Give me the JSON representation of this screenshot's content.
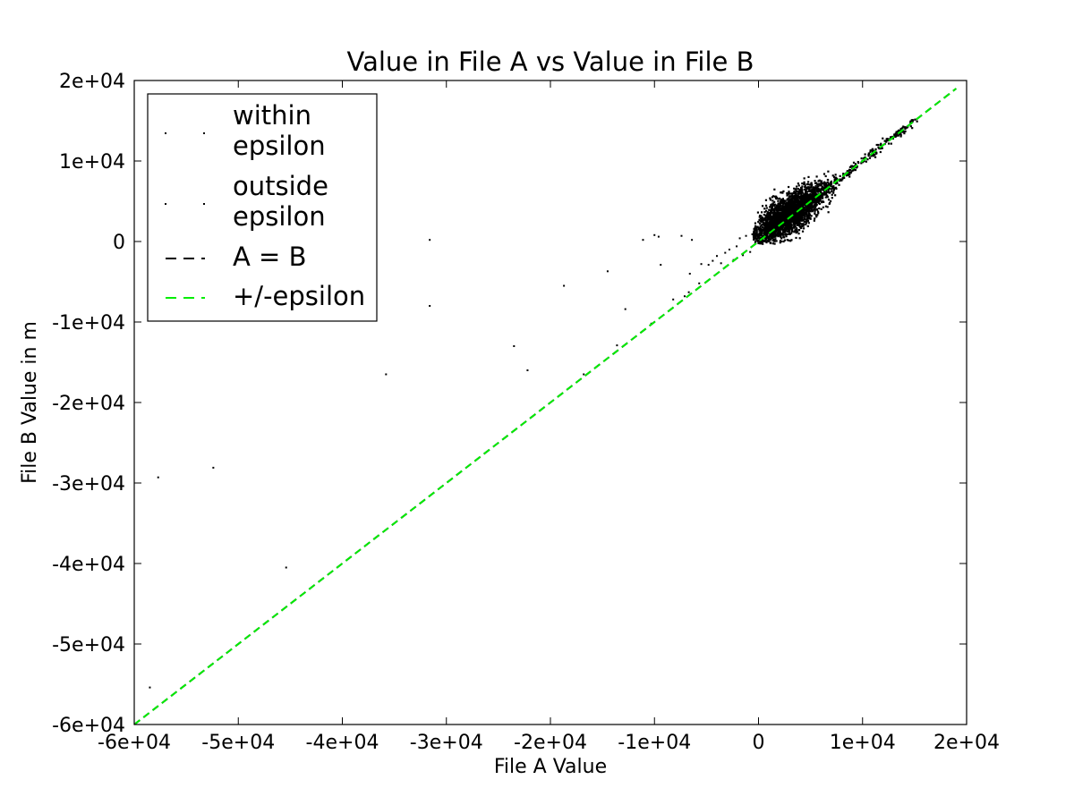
{
  "chart_data": {
    "type": "scatter",
    "title": "Value in File A vs Value in File B",
    "xlabel": "File A Value",
    "ylabel": "File B Value in m",
    "xlim": [
      -60000,
      20000
    ],
    "ylim": [
      -60000,
      20000
    ],
    "x_ticks": [
      -60000,
      -50000,
      -40000,
      -30000,
      -20000,
      -10000,
      0,
      10000,
      20000
    ],
    "x_tick_labels": [
      "-6e+04",
      "-5e+04",
      "-4e+04",
      "-3e+04",
      "-2e+04",
      "-1e+04",
      "0",
      "1e+04",
      "2e+04"
    ],
    "y_ticks": [
      20000,
      10000,
      0,
      -10000,
      -20000,
      -30000,
      -40000,
      -50000,
      -60000
    ],
    "y_tick_labels": [
      "2e+04",
      "1e+04",
      "0",
      "-1e+04",
      "-2e+04",
      "-3e+04",
      "-4e+04",
      "-5e+04",
      "-6e+04"
    ],
    "grid": false,
    "legend_position": "top-left",
    "legend": [
      {
        "label_lines": [
          "within",
          "epsilon"
        ],
        "marker": "point",
        "color": "#000000"
      },
      {
        "label_lines": [
          "outside",
          "epsilon"
        ],
        "marker": "point",
        "color": "#000000"
      },
      {
        "label_lines": [
          "A = B"
        ],
        "marker": "dashed-line",
        "color": "#000000"
      },
      {
        "label_lines": [
          "+/-epsilon"
        ],
        "marker": "dashed-line",
        "color": "#00ee00"
      }
    ],
    "colors": {
      "points": "#000000",
      "identity_line": "#000000",
      "epsilon_line": "#00ee00"
    },
    "lines": [
      {
        "name": "A = B",
        "x": [
          -60000,
          19000
        ],
        "y": [
          -60000,
          19000
        ]
      },
      {
        "name": "+/-epsilon",
        "x": [
          -60000,
          19000
        ],
        "y": [
          -60000,
          19000
        ]
      }
    ],
    "dense_cluster": {
      "description_of_shape": "elongated cloud along y = x",
      "center": [
        3000,
        3500
      ],
      "x_range": [
        -500,
        15000
      ],
      "y_range": [
        -300,
        15000
      ]
    },
    "outside_points": [
      {
        "x": -58500,
        "y": -55400
      },
      {
        "x": -57700,
        "y": -29300
      },
      {
        "x": -52400,
        "y": -28100
      },
      {
        "x": -45400,
        "y": -40500
      },
      {
        "x": -35800,
        "y": -16500
      },
      {
        "x": -31600,
        "y": 200
      },
      {
        "x": -31600,
        "y": -8000
      },
      {
        "x": -23500,
        "y": -13000
      },
      {
        "x": -22200,
        "y": -16000
      },
      {
        "x": -18700,
        "y": -5500
      },
      {
        "x": -16800,
        "y": -16500
      },
      {
        "x": -14500,
        "y": -3700
      },
      {
        "x": -13600,
        "y": -12900
      },
      {
        "x": -12800,
        "y": -8400
      },
      {
        "x": -11100,
        "y": 200
      },
      {
        "x": -10300,
        "y": -10200
      },
      {
        "x": -10000,
        "y": 800
      },
      {
        "x": -9600,
        "y": 600
      },
      {
        "x": -9400,
        "y": -2900
      },
      {
        "x": -8200,
        "y": -7200
      },
      {
        "x": -7400,
        "y": 700
      },
      {
        "x": -7100,
        "y": -6800
      },
      {
        "x": -6700,
        "y": -6300
      },
      {
        "x": -6600,
        "y": -4000
      },
      {
        "x": -6400,
        "y": 200
      },
      {
        "x": -5700,
        "y": -5200
      },
      {
        "x": -5500,
        "y": -2800
      },
      {
        "x": -4800,
        "y": -2900
      },
      {
        "x": -4400,
        "y": -2400
      },
      {
        "x": -4000,
        "y": -1800
      },
      {
        "x": -3600,
        "y": -2700
      },
      {
        "x": -3200,
        "y": -1400
      },
      {
        "x": -2800,
        "y": -1000
      },
      {
        "x": -2400,
        "y": -2300
      },
      {
        "x": -2100,
        "y": -600
      },
      {
        "x": -1800,
        "y": 400
      },
      {
        "x": -1500,
        "y": -1700
      },
      {
        "x": -1200,
        "y": 700
      },
      {
        "x": -800,
        "y": -1300
      },
      {
        "x": -600,
        "y": 900
      }
    ]
  }
}
